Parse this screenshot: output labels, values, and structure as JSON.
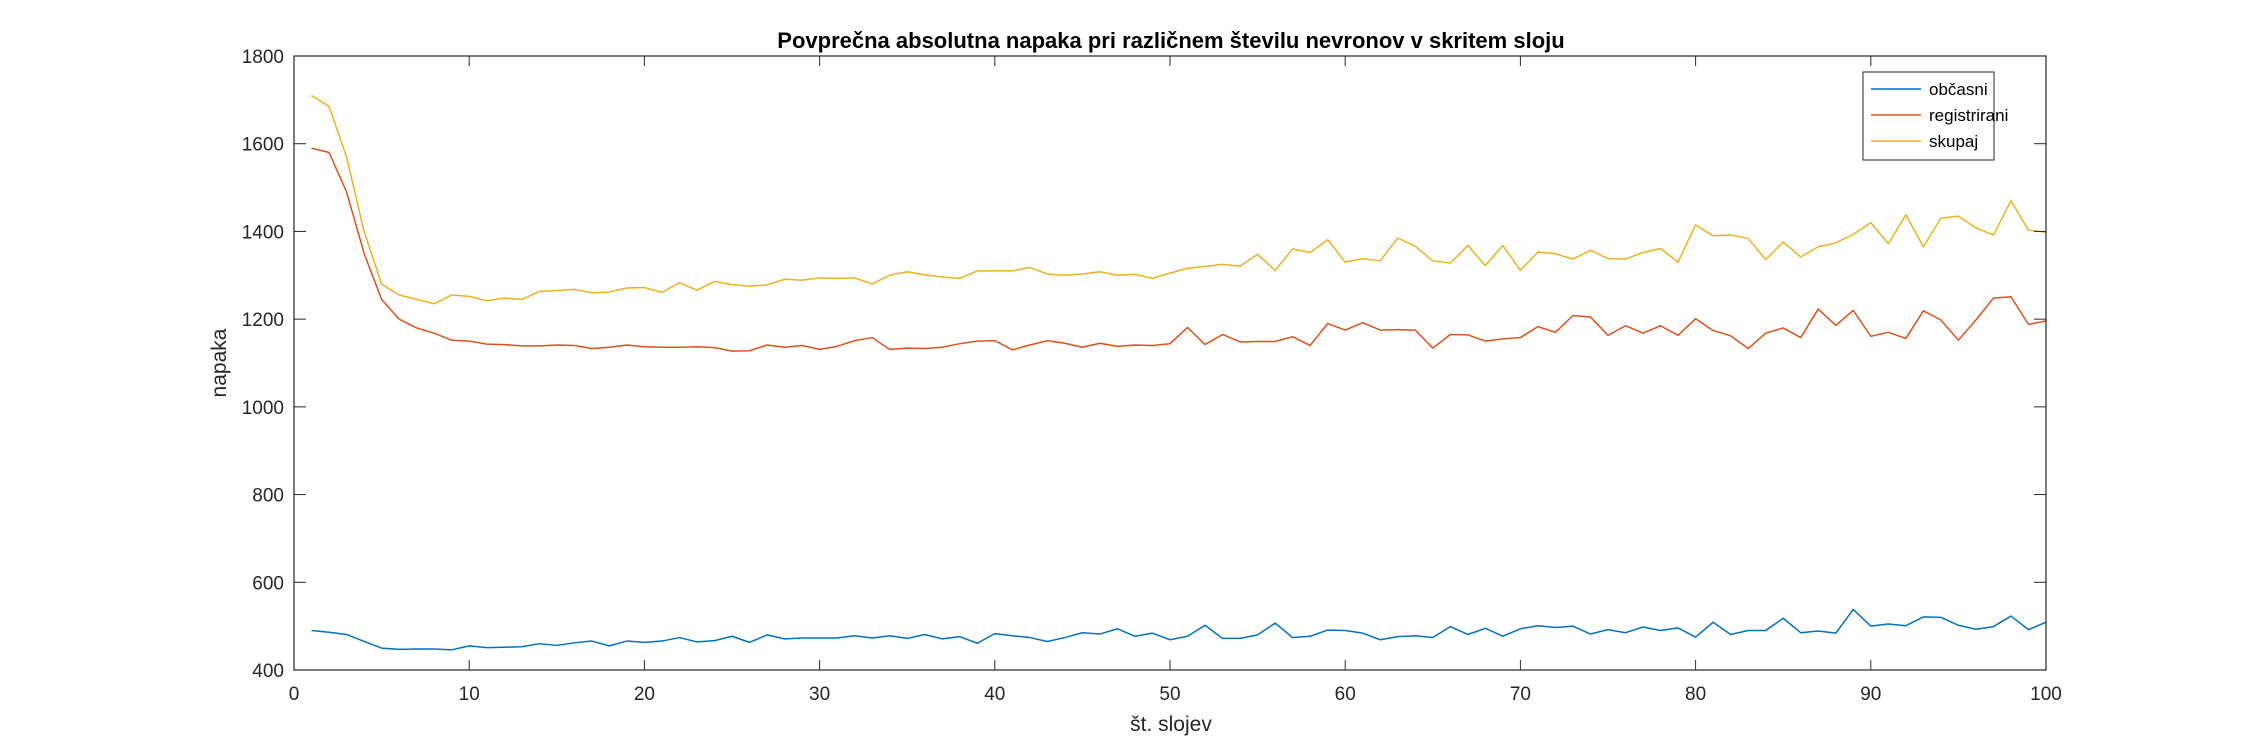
{
  "chart_data": {
    "type": "line",
    "title": "Povprečna absolutna napaka pri različnem številu nevronov v skritem sloju",
    "xlabel": "št. slojev",
    "ylabel": "napaka",
    "xlim": [
      0,
      100
    ],
    "ylim": [
      400,
      1800
    ],
    "xticks": [
      0,
      10,
      20,
      30,
      40,
      50,
      60,
      70,
      80,
      90,
      100
    ],
    "yticks": [
      400,
      600,
      800,
      1000,
      1200,
      1400,
      1600,
      1800
    ],
    "grid": false,
    "legend_position": "top-right",
    "x": [
      1,
      2,
      3,
      4,
      5,
      6,
      7,
      8,
      9,
      10,
      11,
      12,
      13,
      14,
      15,
      16,
      17,
      18,
      19,
      20,
      21,
      22,
      23,
      24,
      25,
      26,
      27,
      28,
      29,
      30,
      31,
      32,
      33,
      34,
      35,
      36,
      37,
      38,
      39,
      40,
      41,
      42,
      43,
      44,
      45,
      46,
      47,
      48,
      49,
      50,
      51,
      52,
      53,
      54,
      55,
      56,
      57,
      58,
      59,
      60,
      61,
      62,
      63,
      64,
      65,
      66,
      67,
      68,
      69,
      70,
      71,
      72,
      73,
      74,
      75,
      76,
      77,
      78,
      79,
      80,
      81,
      82,
      83,
      84,
      85,
      86,
      87,
      88,
      89,
      90,
      91,
      92,
      93,
      94,
      95,
      96,
      97,
      98,
      99,
      100
    ],
    "series": [
      {
        "name": "občasni",
        "color": "#0072BD",
        "values": [
          490,
          486,
          481,
          465,
          450,
          447,
          448,
          448,
          446,
          455,
          451,
          452,
          453,
          460,
          456,
          462,
          466,
          455,
          466,
          463,
          466,
          474,
          464,
          467,
          477,
          463,
          480,
          471,
          473,
          473,
          473,
          478,
          473,
          478,
          472,
          481,
          471,
          476,
          461,
          483,
          478,
          474,
          465,
          474,
          485,
          482,
          494,
          477,
          484,
          469,
          477,
          502,
          472,
          472,
          480,
          507,
          474,
          477,
          491,
          490,
          484,
          469,
          476,
          478,
          474,
          499,
          481,
          495,
          477,
          494,
          501,
          497,
          500,
          482,
          492,
          485,
          498,
          490,
          496,
          475,
          509,
          481,
          490,
          490,
          518,
          485,
          489,
          484,
          538,
          500,
          505,
          501,
          521,
          520,
          502,
          493,
          499,
          523,
          492,
          509
        ]
      },
      {
        "name": "registrirani",
        "color": "#D95319",
        "values": [
          1590,
          1580,
          1490,
          1350,
          1245,
          1200,
          1180,
          1168,
          1152,
          1150,
          1143,
          1142,
          1139,
          1139,
          1141,
          1140,
          1133,
          1136,
          1141,
          1137,
          1136,
          1136,
          1137,
          1135,
          1127,
          1128,
          1141,
          1136,
          1140,
          1131,
          1138,
          1151,
          1158,
          1131,
          1134,
          1133,
          1136,
          1144,
          1150,
          1151,
          1130,
          1141,
          1151,
          1145,
          1136,
          1145,
          1138,
          1141,
          1140,
          1144,
          1181,
          1142,
          1165,
          1148,
          1149,
          1149,
          1160,
          1140,
          1190,
          1175,
          1192,
          1175,
          1176,
          1175,
          1134,
          1165,
          1164,
          1150,
          1155,
          1158,
          1183,
          1170,
          1208,
          1205,
          1163,
          1185,
          1168,
          1185,
          1163,
          1201,
          1174,
          1162,
          1133,
          1168,
          1180,
          1158,
          1223,
          1186,
          1220,
          1161,
          1170,
          1156,
          1219,
          1198,
          1152,
          1198,
          1248,
          1251,
          1188,
          1196
        ]
      },
      {
        "name": "skupaj",
        "color": "#EDB120",
        "values": [
          1710,
          1685,
          1570,
          1400,
          1280,
          1255,
          1245,
          1235,
          1255,
          1252,
          1242,
          1248,
          1245,
          1263,
          1265,
          1268,
          1260,
          1262,
          1271,
          1272,
          1261,
          1283,
          1266,
          1286,
          1279,
          1275,
          1278,
          1291,
          1289,
          1294,
          1293,
          1294,
          1280,
          1300,
          1308,
          1301,
          1296,
          1293,
          1310,
          1310,
          1310,
          1318,
          1303,
          1300,
          1303,
          1308,
          1300,
          1302,
          1293,
          1305,
          1316,
          1320,
          1325,
          1321,
          1348,
          1311,
          1360,
          1352,
          1381,
          1330,
          1338,
          1333,
          1385,
          1366,
          1333,
          1328,
          1368,
          1322,
          1368,
          1311,
          1353,
          1349,
          1337,
          1357,
          1338,
          1337,
          1352,
          1361,
          1330,
          1415,
          1390,
          1392,
          1384,
          1336,
          1376,
          1342,
          1365,
          1374,
          1393,
          1420,
          1372,
          1438,
          1365,
          1430,
          1435,
          1408,
          1392,
          1470,
          1403,
          1398
        ]
      }
    ]
  }
}
